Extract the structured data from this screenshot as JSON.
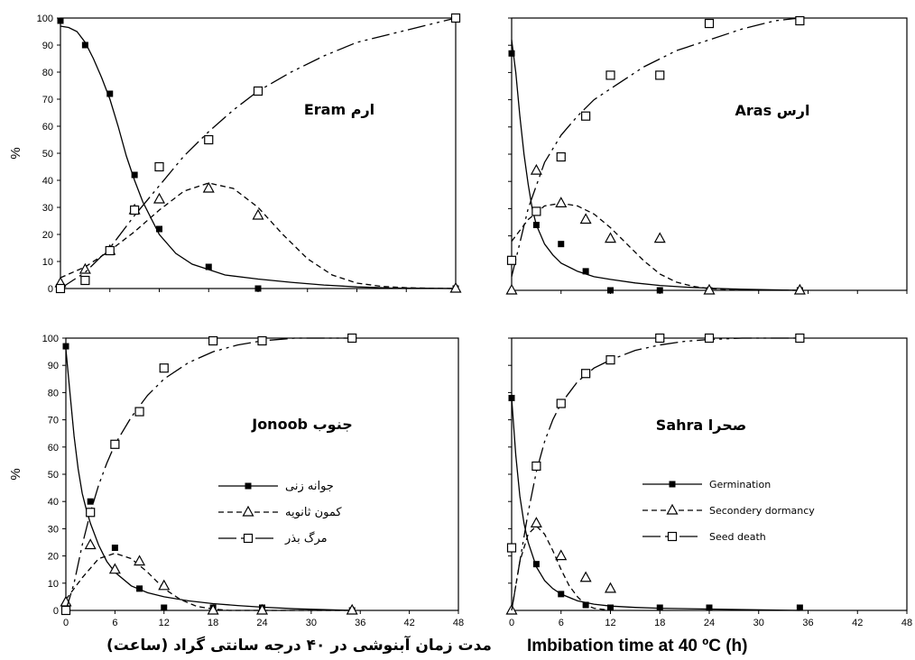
{
  "figure": {
    "xlabel_fa": "مدت زمان آبنوشی در ۴۰ درجه سانتی گراد (ساعت)",
    "xlabel_en": "Imbibation time at 40 ºC (h)",
    "ylabel": "%"
  },
  "legend_fa": [
    "جوانه زنی",
    "کمون ثانویه",
    "مرگ بذر"
  ],
  "legend_en": [
    "Germination",
    "Secondery dormancy",
    "Seed death"
  ],
  "chart_data": [
    {
      "type": "line",
      "panel": "top-left",
      "title": "Eram ارم",
      "ylabel": "%",
      "xlim": [
        0,
        48
      ],
      "ylim": [
        0,
        100
      ],
      "xticks": [
        "0",
        "6",
        "12",
        "18",
        "24",
        "30",
        "36",
        "42",
        "48"
      ],
      "yticks": [
        "0",
        "10",
        "20",
        "30",
        "40",
        "50",
        "60",
        "70",
        "80",
        "90",
        "100"
      ],
      "series": [
        {
          "key": "germination",
          "x": [
            0,
            3,
            6,
            9,
            12,
            18,
            24,
            48
          ],
          "y": [
            99,
            90,
            72,
            42,
            22,
            8,
            0,
            0
          ],
          "fit_x": [
            0,
            1,
            2,
            3,
            4,
            5,
            6,
            7,
            8,
            9,
            10,
            12,
            14,
            16,
            18,
            20,
            24,
            28,
            32,
            36,
            40,
            44,
            48
          ],
          "fit_y": [
            97,
            96.5,
            95,
            91,
            85,
            78,
            70,
            60,
            49,
            40,
            32,
            20,
            13,
            9,
            7,
            5,
            3.5,
            2.3,
            1.3,
            0.6,
            0.2,
            0.1,
            0
          ]
        },
        {
          "key": "dormancy",
          "x": [
            0,
            3,
            6,
            9,
            12,
            18,
            24,
            48
          ],
          "y": [
            2,
            7,
            14,
            29,
            33,
            37,
            27,
            0
          ],
          "fit_x": [
            0,
            3,
            6,
            9,
            12,
            15,
            18,
            21,
            24,
            27,
            30,
            33,
            36,
            39,
            42,
            45,
            48
          ],
          "fit_y": [
            4,
            8,
            14,
            21,
            29,
            36,
            39,
            37,
            30,
            20,
            11,
            5,
            2,
            0.8,
            0.3,
            0.1,
            0
          ]
        },
        {
          "key": "death",
          "x": [
            0,
            3,
            6,
            9,
            12,
            18,
            24,
            48
          ],
          "y": [
            0,
            3,
            14,
            29,
            45,
            55,
            73,
            100
          ],
          "fit_x": [
            0,
            3,
            6,
            9,
            12,
            15,
            18,
            21,
            24,
            28,
            32,
            36,
            40,
            44,
            48
          ],
          "fit_y": [
            0,
            6,
            15,
            27,
            38,
            49,
            58,
            66,
            73,
            80,
            86,
            91,
            94,
            97,
            100
          ]
        }
      ]
    },
    {
      "type": "line",
      "panel": "top-right",
      "title": "Aras ارس",
      "ylabel": "",
      "xlim": [
        0,
        48
      ],
      "ylim": [
        0,
        100
      ],
      "xticks": [
        "0",
        "6",
        "12",
        "18",
        "24",
        "30",
        "36",
        "42",
        "48"
      ],
      "yticks": [
        "0",
        "10",
        "20",
        "30",
        "40",
        "50",
        "60",
        "70",
        "80",
        "90",
        "100"
      ],
      "series": [
        {
          "key": "germination",
          "x": [
            0,
            3,
            6,
            9,
            12,
            18,
            24,
            35
          ],
          "y": [
            87,
            24,
            17,
            7,
            0,
            0,
            0,
            0
          ],
          "fit_x": [
            0,
            0.5,
            1,
            1.5,
            2,
            2.5,
            3,
            4,
            5,
            6,
            8,
            10,
            12,
            15,
            18,
            21,
            24,
            28,
            35
          ],
          "fit_y": [
            92,
            80,
            64,
            50,
            39,
            30,
            24,
            17,
            13,
            10,
            7,
            5,
            4,
            2.7,
            1.8,
            1.2,
            0.8,
            0.4,
            0
          ]
        },
        {
          "key": "dormancy",
          "x": [
            0,
            3,
            6,
            9,
            12,
            18,
            24,
            35
          ],
          "y": [
            0,
            44,
            32,
            26,
            19,
            19,
            0,
            0
          ],
          "fit_x": [
            0,
            2,
            4,
            6,
            8,
            10,
            12,
            14,
            16,
            18,
            20,
            22,
            24,
            28,
            35
          ],
          "fit_y": [
            18,
            26,
            31,
            32,
            31,
            28,
            23,
            17,
            11,
            6,
            3,
            1.5,
            0.6,
            0.2,
            0
          ]
        },
        {
          "key": "death",
          "x": [
            0,
            3,
            6,
            9,
            12,
            18,
            24,
            35
          ],
          "y": [
            11,
            29,
            49,
            64,
            79,
            79,
            98,
            99
          ],
          "fit_x": [
            0,
            2,
            4,
            6,
            8,
            10,
            12,
            14,
            16,
            18,
            20,
            24,
            28,
            32,
            35
          ],
          "fit_y": [
            5,
            30,
            47,
            57,
            64,
            70,
            74,
            78,
            82,
            85,
            88,
            92,
            96,
            99,
            100
          ]
        }
      ]
    },
    {
      "type": "line",
      "panel": "bottom-left",
      "title": "Jonoob جنوب",
      "ylabel": "%",
      "xlim": [
        0,
        48
      ],
      "ylim": [
        0,
        100
      ],
      "xticks": [
        "0",
        "6",
        "12",
        "18",
        "24",
        "30",
        "36",
        "42",
        "48"
      ],
      "yticks": [
        "0",
        "10",
        "20",
        "30",
        "40",
        "50",
        "60",
        "70",
        "80",
        "90",
        "100"
      ],
      "series": [
        {
          "key": "germination",
          "x": [
            0,
            3,
            6,
            9,
            12,
            18,
            24,
            35
          ],
          "y": [
            97,
            40,
            23,
            8,
            1,
            1,
            1,
            0
          ],
          "fit_x": [
            0,
            0.5,
            1,
            1.5,
            2,
            2.5,
            3,
            4,
            5,
            6,
            8,
            10,
            12,
            15,
            18,
            21,
            24,
            28,
            35
          ],
          "fit_y": [
            96,
            80,
            64,
            52,
            43,
            37,
            32,
            24,
            18,
            14,
            9,
            6.5,
            5,
            3.5,
            2.5,
            1.8,
            1.2,
            0.6,
            0
          ]
        },
        {
          "key": "dormancy",
          "x": [
            0,
            3,
            6,
            9,
            12,
            18,
            24,
            35
          ],
          "y": [
            3,
            24,
            15,
            18,
            9,
            0,
            0,
            0
          ],
          "fit_x": [
            0,
            2,
            4,
            6,
            8,
            10,
            12,
            14,
            16,
            18,
            20,
            24,
            28,
            35
          ],
          "fit_y": [
            4,
            12,
            19,
            21,
            19,
            14,
            8,
            4,
            1.5,
            0.5,
            0,
            0,
            0,
            0
          ]
        },
        {
          "key": "death",
          "x": [
            0,
            3,
            6,
            9,
            12,
            18,
            24,
            35
          ],
          "y": [
            0,
            36,
            61,
            73,
            89,
            99,
            99,
            100
          ],
          "fit_x": [
            0,
            1,
            2,
            3,
            4,
            5,
            6,
            8,
            10,
            12,
            15,
            18,
            21,
            24,
            28,
            35
          ],
          "fit_y": [
            0,
            10,
            24,
            36,
            46,
            54,
            61,
            71,
            79,
            85,
            91,
            95,
            97.5,
            99,
            100,
            100
          ]
        }
      ]
    },
    {
      "type": "line",
      "panel": "bottom-right",
      "title": "Sahra صحرا",
      "ylabel": "",
      "xlim": [
        0,
        48
      ],
      "ylim": [
        0,
        100
      ],
      "xticks": [
        "0",
        "6",
        "12",
        "18",
        "24",
        "30",
        "36",
        "42",
        "48"
      ],
      "yticks": [
        "0",
        "10",
        "20",
        "30",
        "40",
        "50",
        "60",
        "70",
        "80",
        "90",
        "100"
      ],
      "series": [
        {
          "key": "germination",
          "x": [
            0,
            3,
            6,
            9,
            12,
            18,
            24,
            35
          ],
          "y": [
            78,
            17,
            6,
            2,
            1,
            1,
            1,
            1
          ],
          "fit_x": [
            0,
            0.5,
            1,
            1.5,
            2,
            3,
            4,
            5,
            6,
            8,
            10,
            12,
            15,
            18,
            24,
            35
          ],
          "fit_y": [
            78,
            57,
            42,
            32,
            25,
            16,
            11,
            8,
            6,
            3.5,
            2.3,
            1.6,
            1.1,
            0.8,
            0.5,
            0
          ]
        },
        {
          "key": "dormancy",
          "x": [
            0,
            3,
            6,
            9,
            12
          ],
          "y": [
            0,
            32,
            20,
            12,
            8
          ],
          "fit_x": [
            0,
            1,
            2,
            3,
            4,
            5,
            6,
            7,
            8,
            9,
            10,
            12
          ],
          "fit_y": [
            0,
            18,
            28,
            31,
            28,
            22,
            15,
            9,
            5,
            2,
            0.8,
            0
          ]
        },
        {
          "key": "death",
          "x": [
            0,
            3,
            6,
            9,
            12,
            18,
            24,
            35
          ],
          "y": [
            23,
            53,
            76,
            87,
            92,
            100,
            100,
            100
          ],
          "fit_x": [
            0,
            1,
            2,
            3,
            4,
            5,
            6,
            8,
            10,
            12,
            15,
            18,
            21,
            24,
            28,
            35
          ],
          "fit_y": [
            0,
            18,
            36,
            51,
            62,
            70,
            76,
            84,
            89,
            92,
            95.5,
            97.5,
            98.8,
            99.5,
            100,
            100
          ]
        }
      ]
    }
  ]
}
